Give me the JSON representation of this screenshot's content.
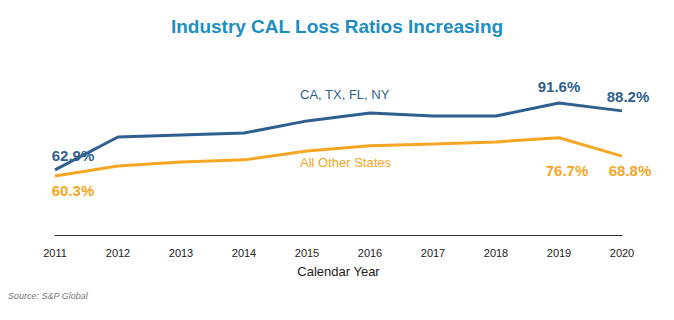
{
  "chart_data": {
    "type": "line",
    "title": "Industry CAL Loss Ratios Increasing",
    "x_label": "Calendar Year",
    "source": "Source: S&P Global",
    "categories": [
      "2011",
      "2012",
      "2013",
      "2014",
      "2015",
      "2016",
      "2017",
      "2018",
      "2019",
      "2020"
    ],
    "series": [
      {
        "name": "CA, TX, FL, NY",
        "color": "#2f5f8e",
        "values": [
          62.9,
          77.0,
          77.9,
          78.7,
          83.9,
          87.3,
          86.0,
          86.0,
          91.6,
          88.2
        ],
        "value_labels": [
          "62.9%",
          null,
          null,
          null,
          null,
          null,
          null,
          null,
          "91.6%",
          "88.2%"
        ]
      },
      {
        "name": "All Other States",
        "color": "#f5a623",
        "values": [
          60.3,
          64.6,
          66.3,
          67.2,
          71.0,
          73.2,
          74.0,
          74.9,
          76.7,
          68.8
        ],
        "value_labels": [
          "60.3%",
          null,
          null,
          null,
          null,
          null,
          null,
          null,
          "76.7%",
          "68.8%"
        ]
      }
    ],
    "ylim": [
      35,
      110
    ],
    "grid": false,
    "data_labels": true,
    "tick_labels": "x"
  }
}
